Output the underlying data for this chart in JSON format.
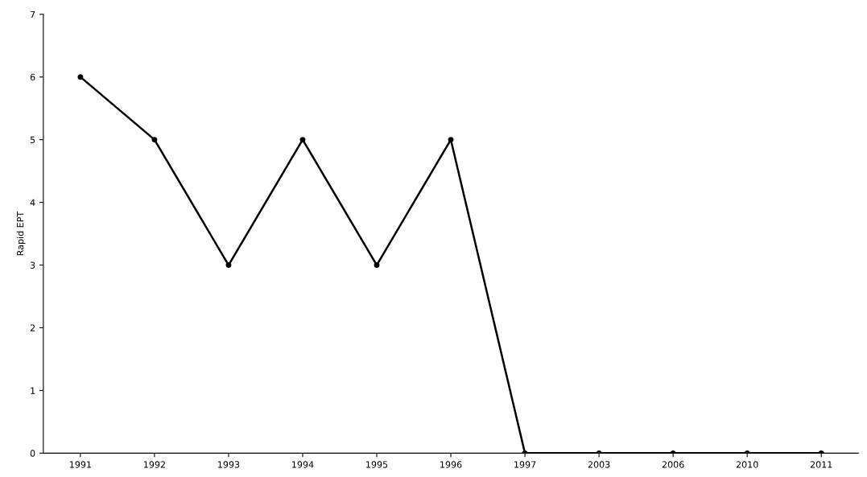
{
  "chart_data": {
    "type": "line",
    "ylabel": "Rapid EPT",
    "categories": [
      "1991",
      "1992",
      "1993",
      "1994",
      "1995",
      "1996",
      "1997",
      "2003",
      "2006",
      "2010",
      "2011"
    ],
    "series": [
      {
        "color": "#000000",
        "values": [
          6,
          5,
          3,
          5,
          3,
          5,
          0,
          0,
          0,
          0,
          0
        ]
      }
    ],
    "ylim": [
      0,
      7
    ],
    "yticks": [
      0,
      1,
      2,
      3,
      4,
      5,
      6,
      7
    ],
    "marker": "circle",
    "line_style": "solid",
    "grid": false,
    "legend": false
  }
}
